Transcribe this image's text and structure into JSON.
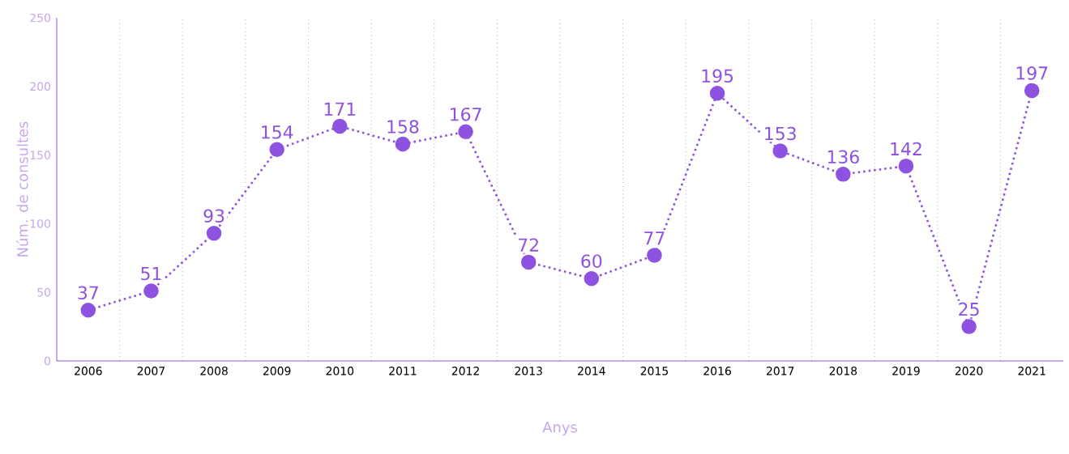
{
  "chart_data": {
    "type": "line",
    "xlabel": "Anys",
    "ylabel": "Núm. de consultes",
    "categories": [
      "2006",
      "2007",
      "2008",
      "2009",
      "2010",
      "2011",
      "2012",
      "2013",
      "2014",
      "2015",
      "2016",
      "2017",
      "2018",
      "2019",
      "2020",
      "2021"
    ],
    "values": [
      37,
      51,
      93,
      154,
      171,
      158,
      167,
      72,
      60,
      77,
      195,
      153,
      136,
      142,
      25,
      197
    ],
    "color": "#8e52e0",
    "ylim": [
      0,
      250
    ],
    "yticks": [
      0,
      50,
      100,
      150,
      200,
      250
    ],
    "grid": "x",
    "marker": "circle",
    "line_style": "dotted",
    "data_labels": true
  }
}
